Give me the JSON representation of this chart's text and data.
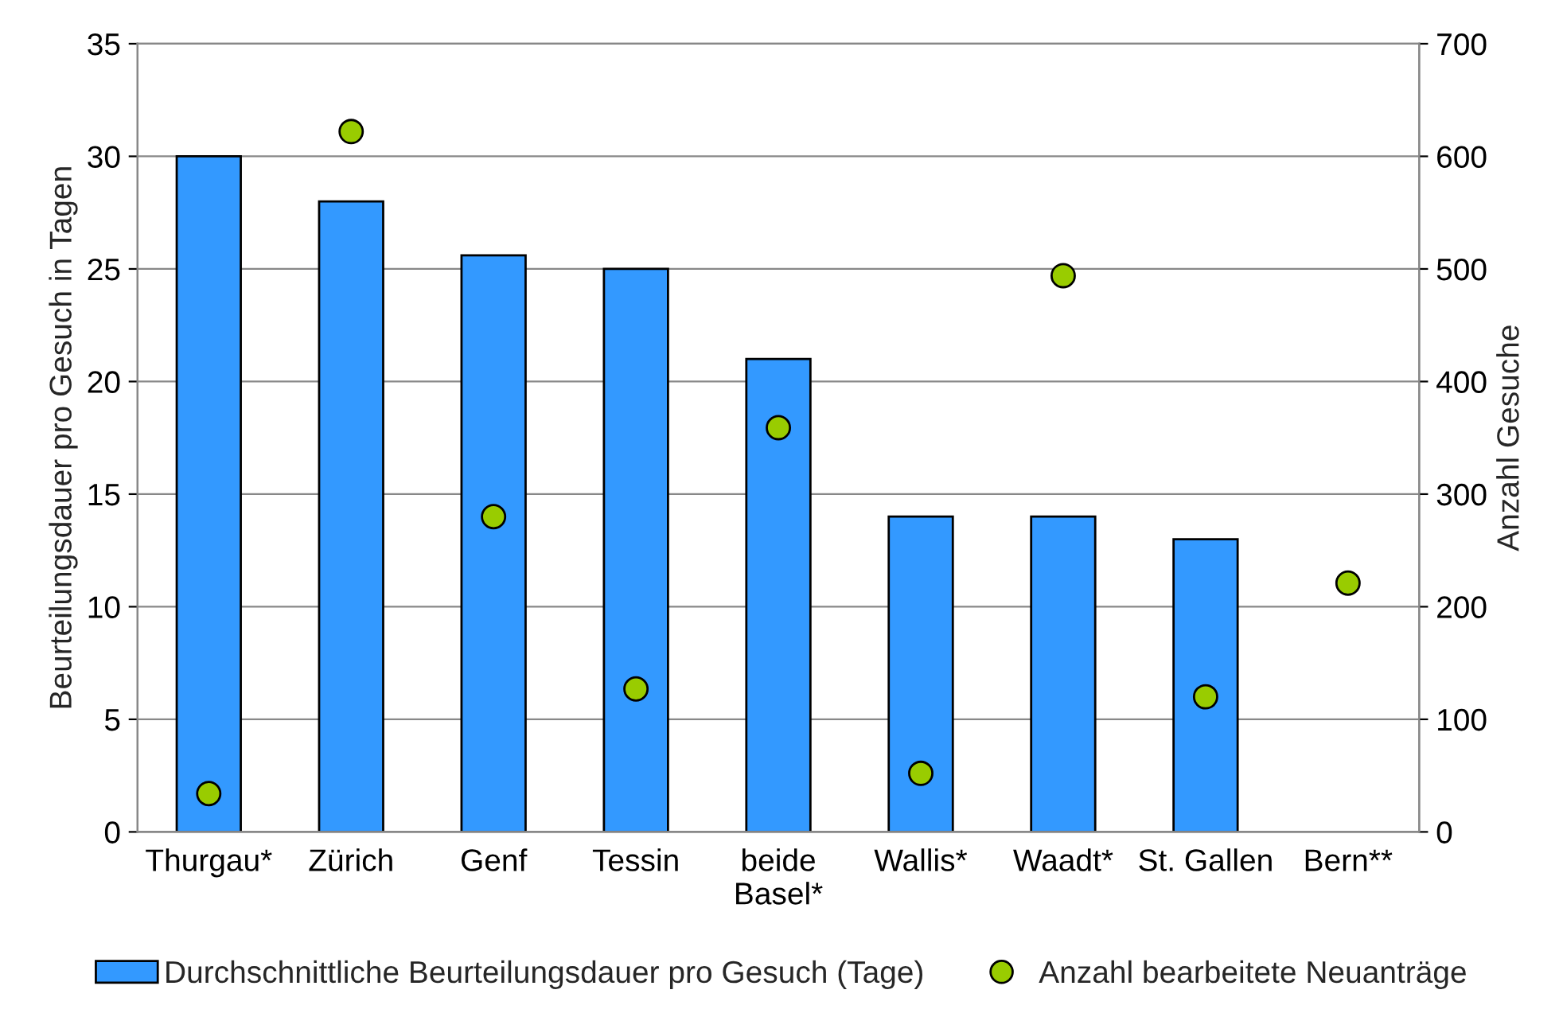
{
  "chart_data": {
    "type": "bar",
    "categories": [
      "Thurgau*",
      "Zürich",
      "Genf",
      "Tessin",
      "beide\nBasel*",
      "Wallis*",
      "Waadt*",
      "St. Gallen",
      "Bern**"
    ],
    "ylabel": "Beurteilungsdauer pro Gesuch in Tagen",
    "y2label": "Anzahl Gesuche",
    "ylim": [
      0,
      35
    ],
    "yticks": [
      0,
      5,
      10,
      15,
      20,
      25,
      30,
      35
    ],
    "y2lim": [
      0,
      700
    ],
    "y2ticks": [
      0,
      100,
      200,
      300,
      400,
      500,
      600,
      700
    ],
    "grid": "y",
    "legend": "bottom",
    "series": [
      {
        "name": "Durchschnittliche Beurteilungsdauer pro Gesuch (Tage)",
        "color": "#3399ff",
        "values": [
          30,
          28,
          25.6,
          25,
          21,
          14,
          14,
          13,
          null
        ]
      },
      {
        "name": "Anzahl bearbeitete Neuanträge",
        "type": "scatter",
        "axis": "y2",
        "color": "#99cc00",
        "marker": "circle",
        "values": [
          34,
          622,
          280,
          127,
          359,
          52,
          494,
          120,
          221
        ]
      }
    ]
  }
}
